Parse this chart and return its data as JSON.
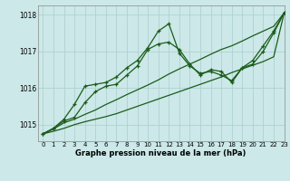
{
  "title": "Graphe pression niveau de la mer (hPa)",
  "background_color": "#cce8e8",
  "grid_color": "#aacece",
  "line_color": "#1a5c1a",
  "xlim": [
    -0.5,
    23
  ],
  "ylim": [
    1014.55,
    1018.25
  ],
  "yticks": [
    1015,
    1016,
    1017,
    1018
  ],
  "xticks": [
    0,
    1,
    2,
    3,
    4,
    5,
    6,
    7,
    8,
    9,
    10,
    11,
    12,
    13,
    14,
    15,
    16,
    17,
    18,
    19,
    20,
    21,
    22,
    23
  ],
  "series_marked_1": [
    1014.75,
    1014.9,
    1015.15,
    1015.55,
    1016.05,
    1016.1,
    1016.15,
    1016.3,
    1016.55,
    1016.75,
    1017.1,
    1017.55,
    1017.75,
    1016.95,
    1016.6,
    1016.4,
    1016.45,
    1016.35,
    1016.2,
    1016.55,
    1016.75,
    1017.15,
    1017.55,
    1018.05
  ],
  "series_marked_2": [
    1014.75,
    1014.9,
    1015.1,
    1015.2,
    1015.6,
    1015.9,
    1016.05,
    1016.1,
    1016.35,
    1016.6,
    1017.05,
    1017.2,
    1017.25,
    1017.05,
    1016.65,
    1016.35,
    1016.5,
    1016.45,
    1016.15,
    1016.55,
    1016.65,
    1017.0,
    1017.5,
    1018.05
  ],
  "series_line_1": [
    1014.75,
    1014.88,
    1015.05,
    1015.15,
    1015.28,
    1015.4,
    1015.55,
    1015.68,
    1015.82,
    1015.95,
    1016.08,
    1016.22,
    1016.38,
    1016.52,
    1016.65,
    1016.78,
    1016.92,
    1017.05,
    1017.15,
    1017.28,
    1017.42,
    1017.55,
    1017.68,
    1018.05
  ],
  "series_line_2": [
    1014.75,
    1014.82,
    1014.9,
    1015.0,
    1015.08,
    1015.15,
    1015.22,
    1015.3,
    1015.4,
    1015.5,
    1015.6,
    1015.7,
    1015.8,
    1015.9,
    1016.0,
    1016.1,
    1016.2,
    1016.3,
    1016.42,
    1016.52,
    1016.62,
    1016.72,
    1016.85,
    1018.05
  ]
}
